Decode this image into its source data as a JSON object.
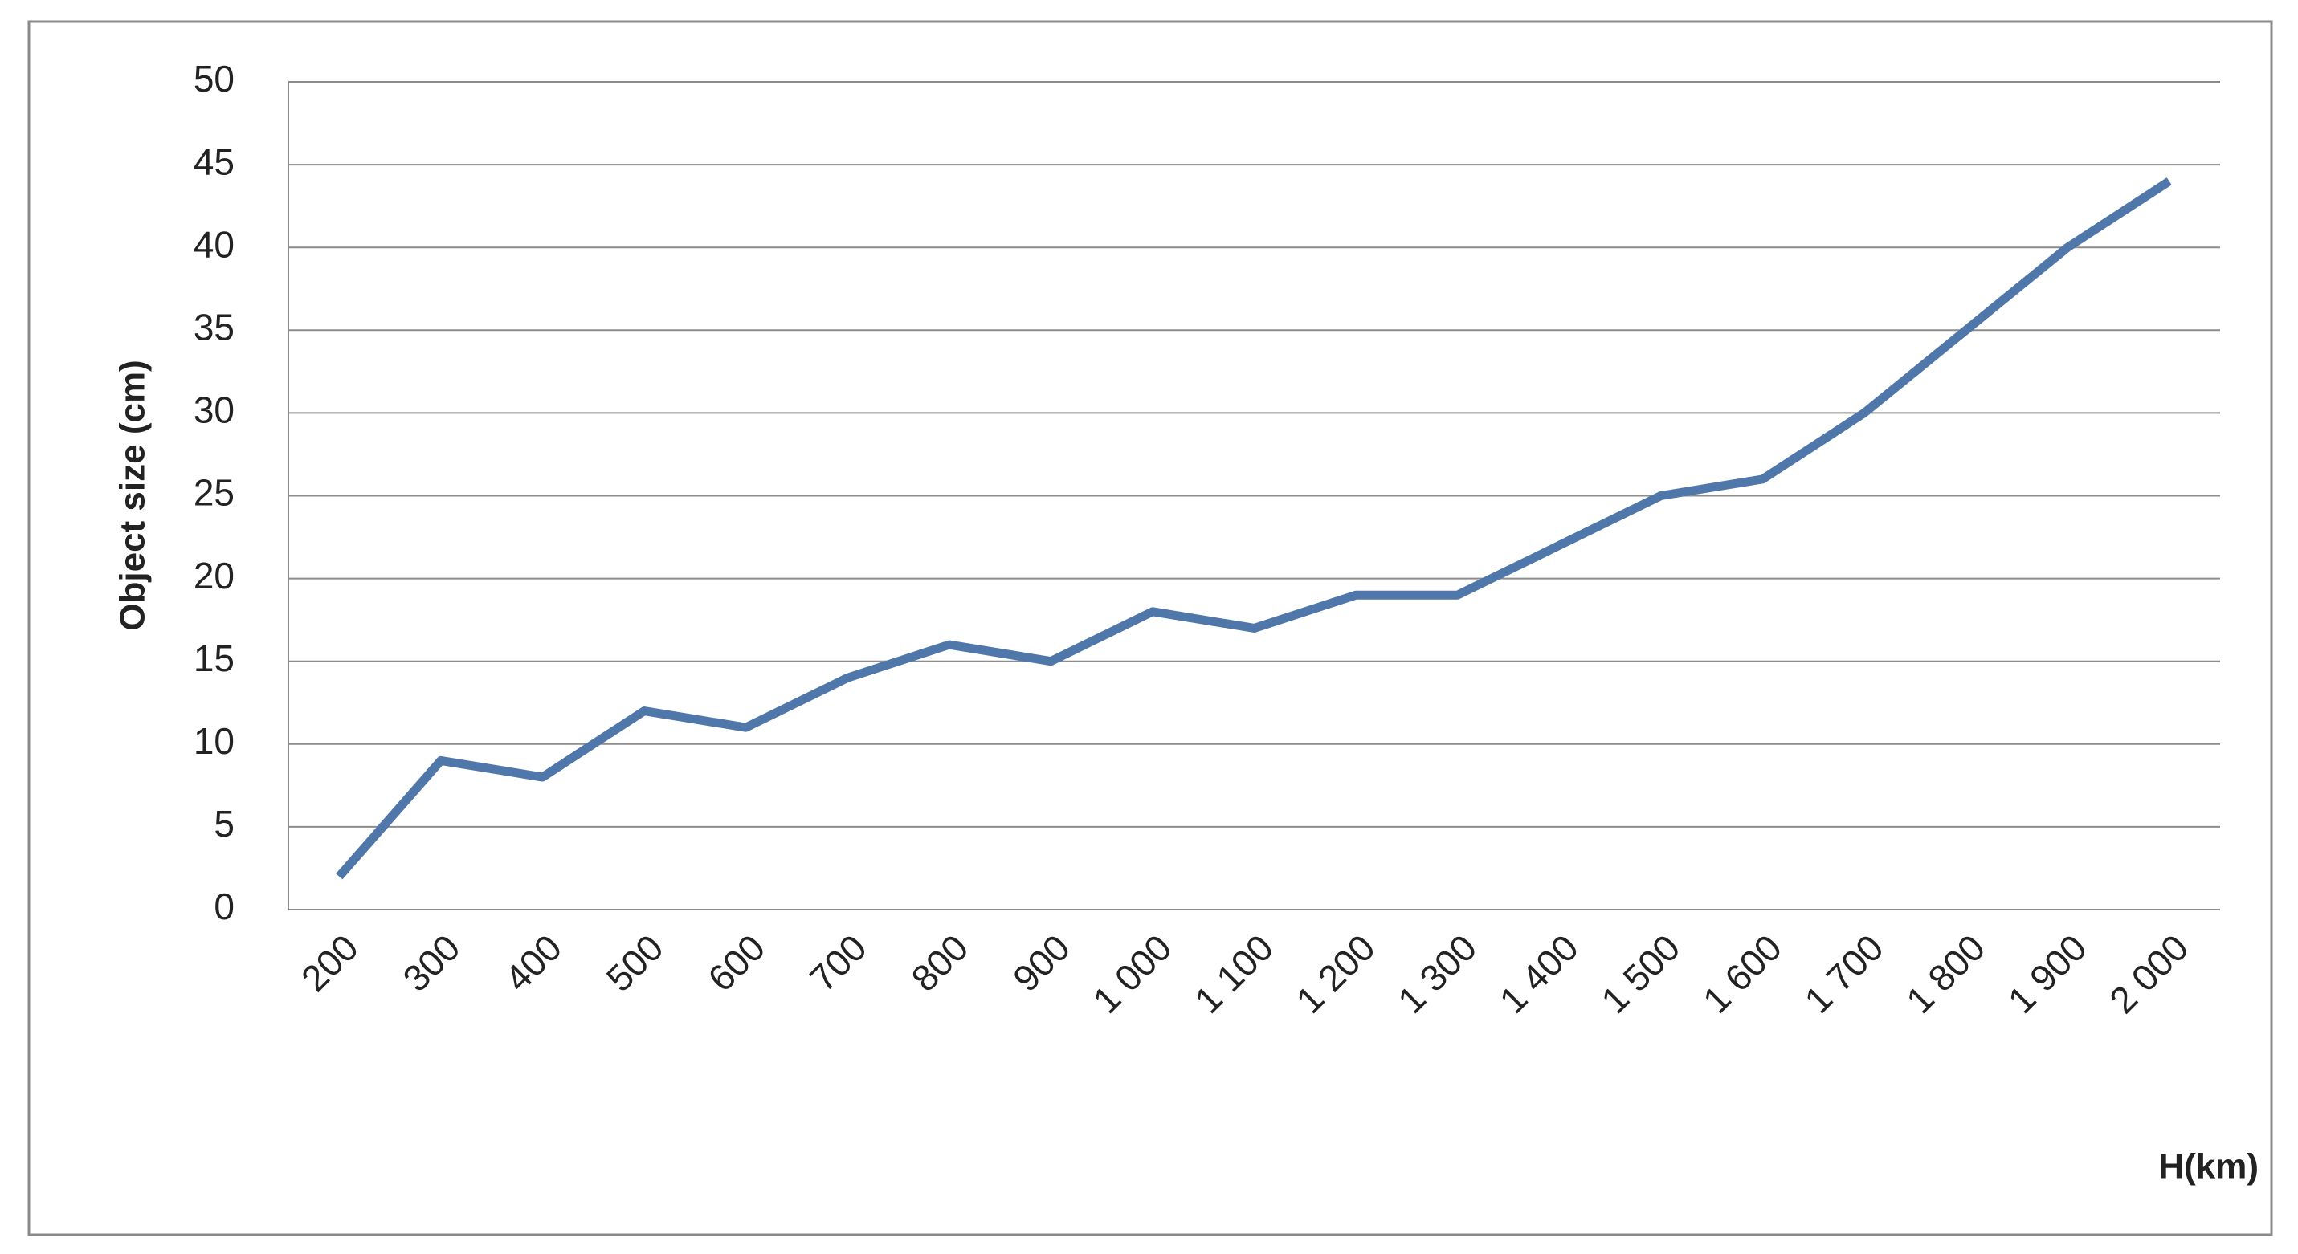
{
  "chart_data": {
    "type": "line",
    "y_label": "Object size (cm)",
    "x_label": "H(km)",
    "categories": [
      "200",
      "300",
      "400",
      "500",
      "600",
      "700",
      "800",
      "900",
      "1 000",
      "1 100",
      "1 200",
      "1 300",
      "1 400",
      "1 500",
      "1 600",
      "1 700",
      "1 800",
      "1 900",
      "2 000"
    ],
    "series": [
      {
        "color": "#4f77aa",
        "values": [
          2,
          9,
          8,
          12,
          11,
          14,
          16,
          15,
          18,
          17,
          19,
          19,
          22,
          25,
          26,
          30,
          35,
          40,
          44
        ]
      }
    ],
    "ylim": [
      0,
      50
    ],
    "yticks": [
      0,
      5,
      10,
      15,
      20,
      25,
      30,
      35,
      40,
      45,
      50
    ],
    "grid": true
  }
}
